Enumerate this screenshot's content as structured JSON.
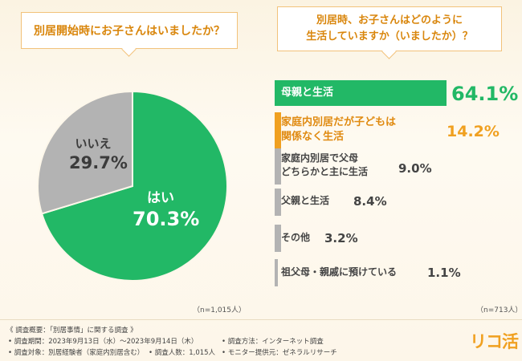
{
  "questions": {
    "left": "別居開始時にお子さんはいましたか？",
    "right": "別居時、お子さんはどのように\n生活していますか（いましたか）？"
  },
  "chart_data": [
    {
      "type": "pie",
      "title": "別居開始時にお子さんはいましたか？",
      "slices": [
        {
          "name": "はい",
          "value": 70.3,
          "display": "70.3%",
          "color": "#22b866"
        },
        {
          "name": "いいえ",
          "value": 29.7,
          "display": "29.7%",
          "color": "#b3b3b3"
        }
      ],
      "note": "（n=1,015人）"
    },
    {
      "type": "bar",
      "orientation": "horizontal",
      "title": "別居時、お子さんはどのように生活していますか（いましたか）？",
      "categories": [
        "母親と生活",
        "家庭内別居だが子どもは\n関係なく生活",
        "家庭内別居で父母\nどちらかと主に生活",
        "父親と生活",
        "その他",
        "祖父母・親戚に預けている"
      ],
      "values": [
        64.1,
        14.2,
        9.0,
        8.4,
        3.2,
        1.1
      ],
      "display": [
        "64.1%",
        "14.2%",
        "9.0%",
        "8.4%",
        "3.2%",
        "1.1%"
      ],
      "colors": [
        "#22b866",
        "#f0a020",
        "#b3b3b3",
        "#b3b3b3",
        "#b3b3b3",
        "#b3b3b3"
      ],
      "note": "（n=713人）"
    }
  ],
  "footer": {
    "title": "《 調査概要：「別居事情」に関する調査 》",
    "period": "• 調査期間：2023年9月13日（水）〜2023年9月14日（木）",
    "method": "• 調査方法：インターネット調査",
    "target": "• 調査対象：別居経験者（家庭内別居含む）",
    "count": "• 調査人数：1,015人",
    "provider": "• モニター提供元：ゼネラルリサーチ"
  },
  "logo": "リコ活"
}
